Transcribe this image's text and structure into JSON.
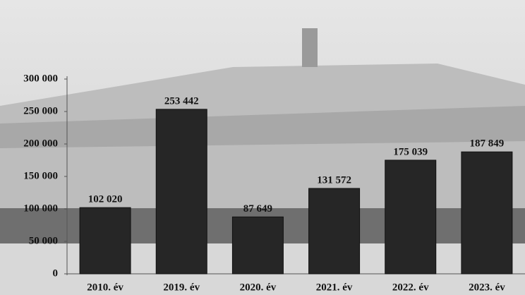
{
  "chart_data": {
    "type": "bar",
    "categories": [
      "2010. év",
      "2019. év",
      "2020. év",
      "2021. év",
      "2022. év",
      "2023. év"
    ],
    "values": [
      102020,
      253442,
      87649,
      131572,
      175039,
      187849
    ],
    "value_labels": [
      "102 020",
      "253 442",
      "87 649",
      "131 572",
      "175 039",
      "187 849"
    ],
    "color": "#262626",
    "ylim": [
      0,
      300000
    ],
    "yticks": [
      0,
      {
        "value": 50000,
        "label": "50 000"
      },
      {
        "value": 100000,
        "label": "100 000"
      },
      {
        "value": 150000,
        "label": "150 000"
      },
      {
        "value": 200000,
        "label": "200 000"
      },
      {
        "value": 250000,
        "label": "250 000"
      },
      {
        "value": 300000,
        "label": "300 000"
      }
    ]
  }
}
